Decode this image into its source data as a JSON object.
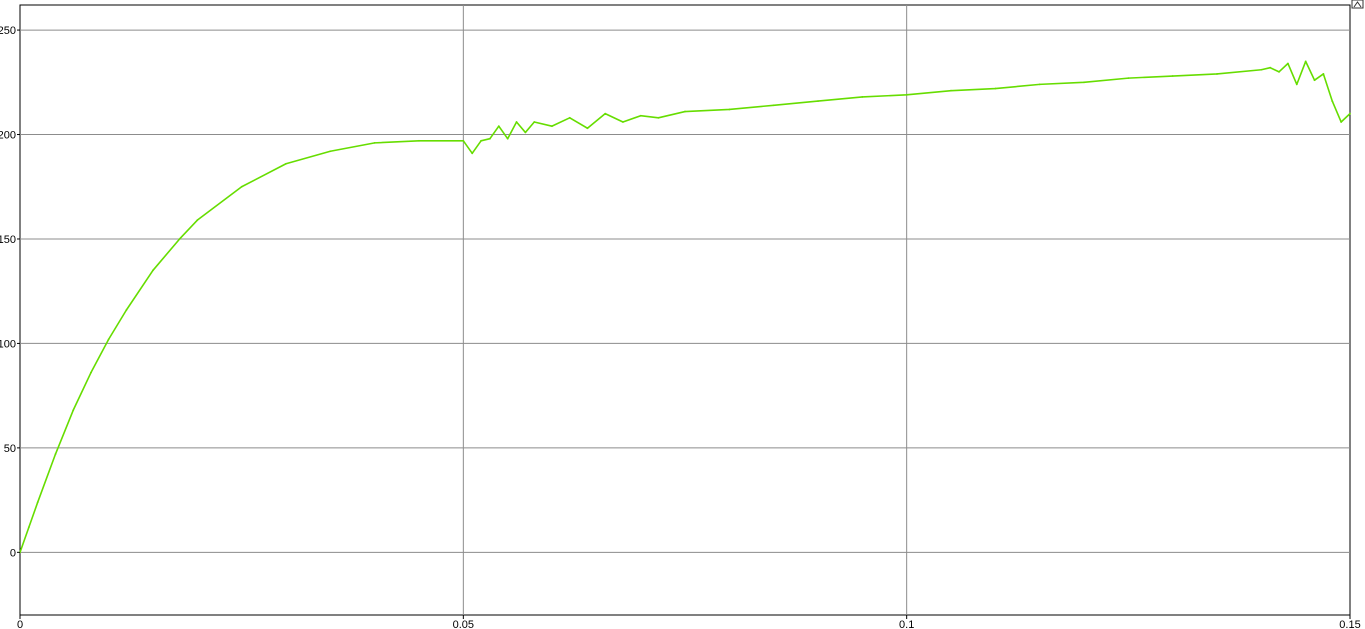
{
  "chart_data": {
    "type": "line",
    "title": "",
    "xlabel": "",
    "ylabel": "",
    "xlim": [
      0,
      0.15
    ],
    "ylim": [
      -30,
      262
    ],
    "grid": true,
    "x_ticks": [
      0,
      0.05,
      0.1,
      0.15
    ],
    "x_tick_labels": [
      "0",
      "0.05",
      "0.1",
      "0.15"
    ],
    "y_ticks": [
      0,
      50,
      100,
      150,
      200,
      250
    ],
    "y_tick_labels": [
      "0",
      "50",
      "100",
      "150",
      "200",
      "250"
    ],
    "series": [
      {
        "color": "#66dd00",
        "x": [
          0,
          0.001,
          0.002,
          0.004,
          0.006,
          0.008,
          0.01,
          0.012,
          0.015,
          0.018,
          0.02,
          0.025,
          0.03,
          0.035,
          0.04,
          0.045,
          0.05,
          0.051,
          0.052,
          0.053,
          0.054,
          0.055,
          0.056,
          0.057,
          0.058,
          0.06,
          0.062,
          0.064,
          0.066,
          0.068,
          0.07,
          0.072,
          0.075,
          0.08,
          0.085,
          0.09,
          0.095,
          0.1,
          0.105,
          0.11,
          0.115,
          0.12,
          0.125,
          0.13,
          0.135,
          0.14,
          0.141,
          0.142,
          0.143,
          0.144,
          0.145,
          0.146,
          0.147,
          0.148,
          0.149,
          0.15
        ],
        "y": [
          0,
          12,
          24,
          47,
          68,
          86,
          102,
          116,
          135,
          150,
          159,
          175,
          186,
          192,
          196,
          197,
          197,
          191,
          197,
          198,
          204,
          198,
          206,
          201,
          206,
          204,
          208,
          203,
          210,
          206,
          209,
          208,
          211,
          212,
          214,
          216,
          218,
          219,
          221,
          222,
          224,
          225,
          227,
          228,
          229,
          231,
          232,
          230,
          234,
          224,
          235,
          226,
          229,
          216,
          206,
          210
        ]
      }
    ]
  },
  "toolbar": {
    "autoscale_icon": "autoscale-icon"
  }
}
